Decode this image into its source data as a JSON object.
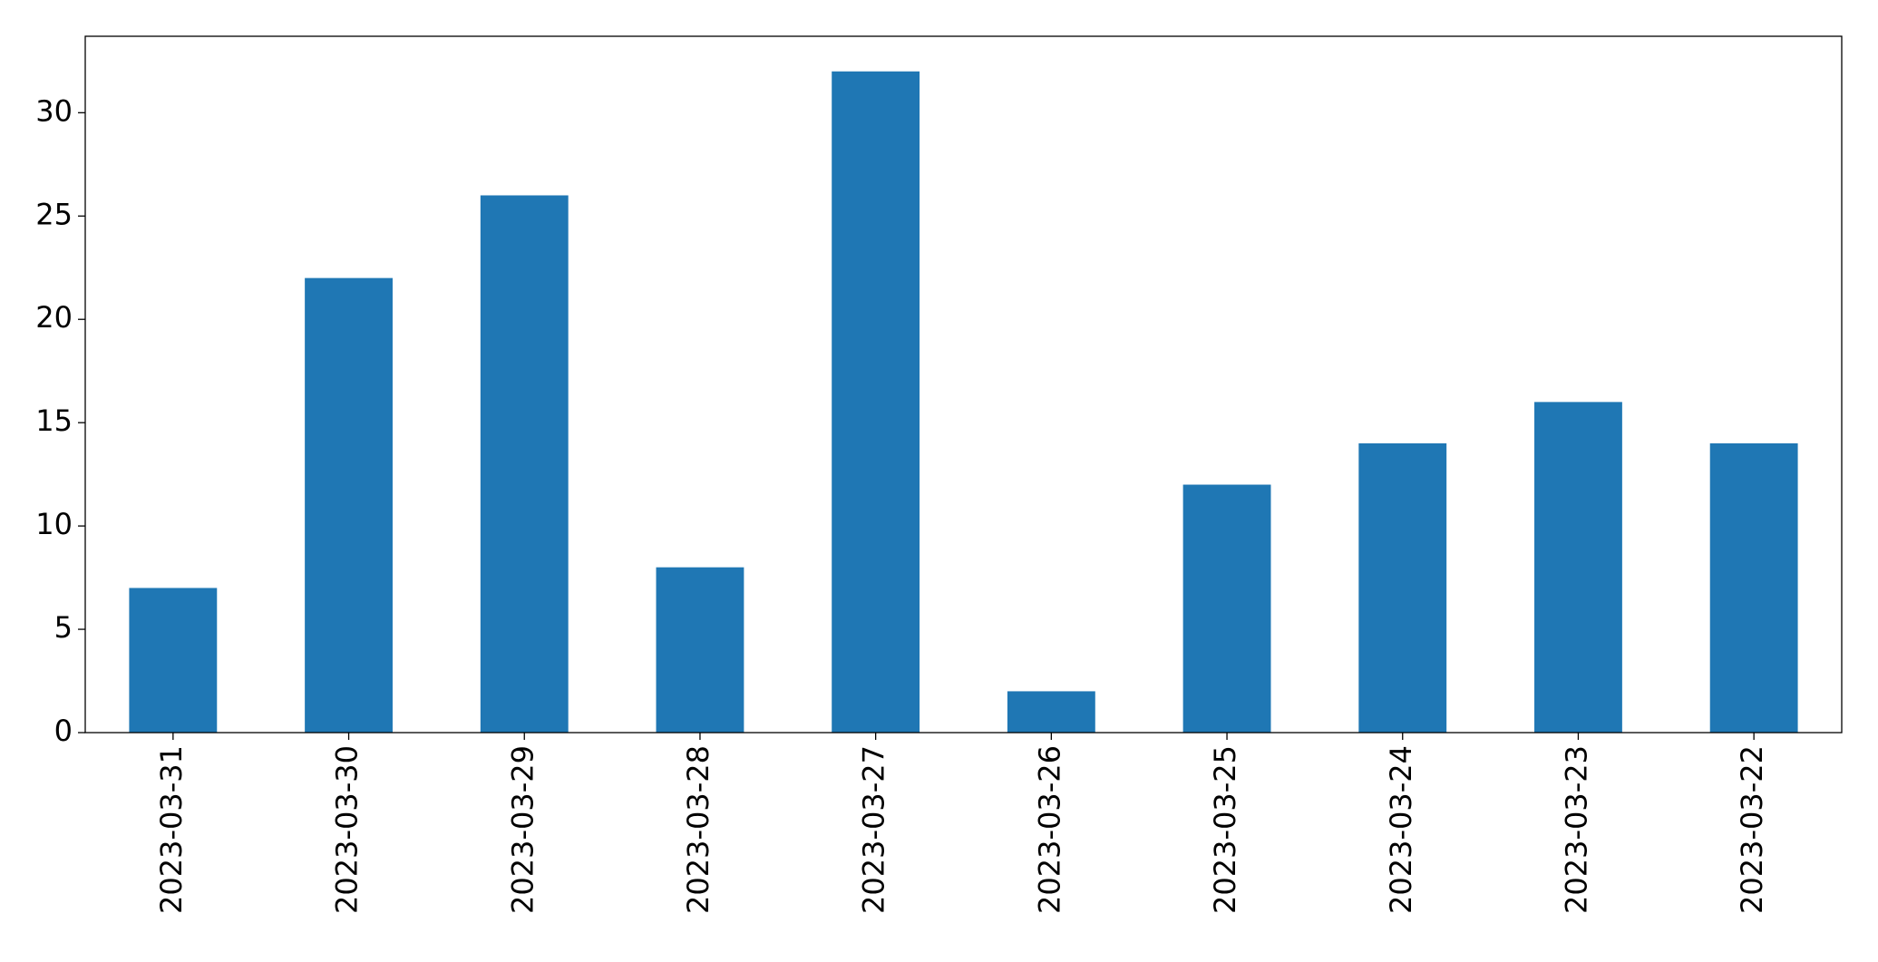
{
  "chart_data": {
    "type": "bar",
    "categories": [
      "2023-03-31",
      "2023-03-30",
      "2023-03-29",
      "2023-03-28",
      "2023-03-27",
      "2023-03-26",
      "2023-03-25",
      "2023-03-24",
      "2023-03-23",
      "2023-03-22"
    ],
    "values": [
      7,
      22,
      26,
      8,
      32,
      2,
      12,
      14,
      16,
      14
    ],
    "color": "#1f77b4",
    "ylim": [
      0,
      33.7
    ],
    "yticks": [
      0,
      5,
      10,
      15,
      20,
      25,
      30
    ],
    "grid": false
  }
}
